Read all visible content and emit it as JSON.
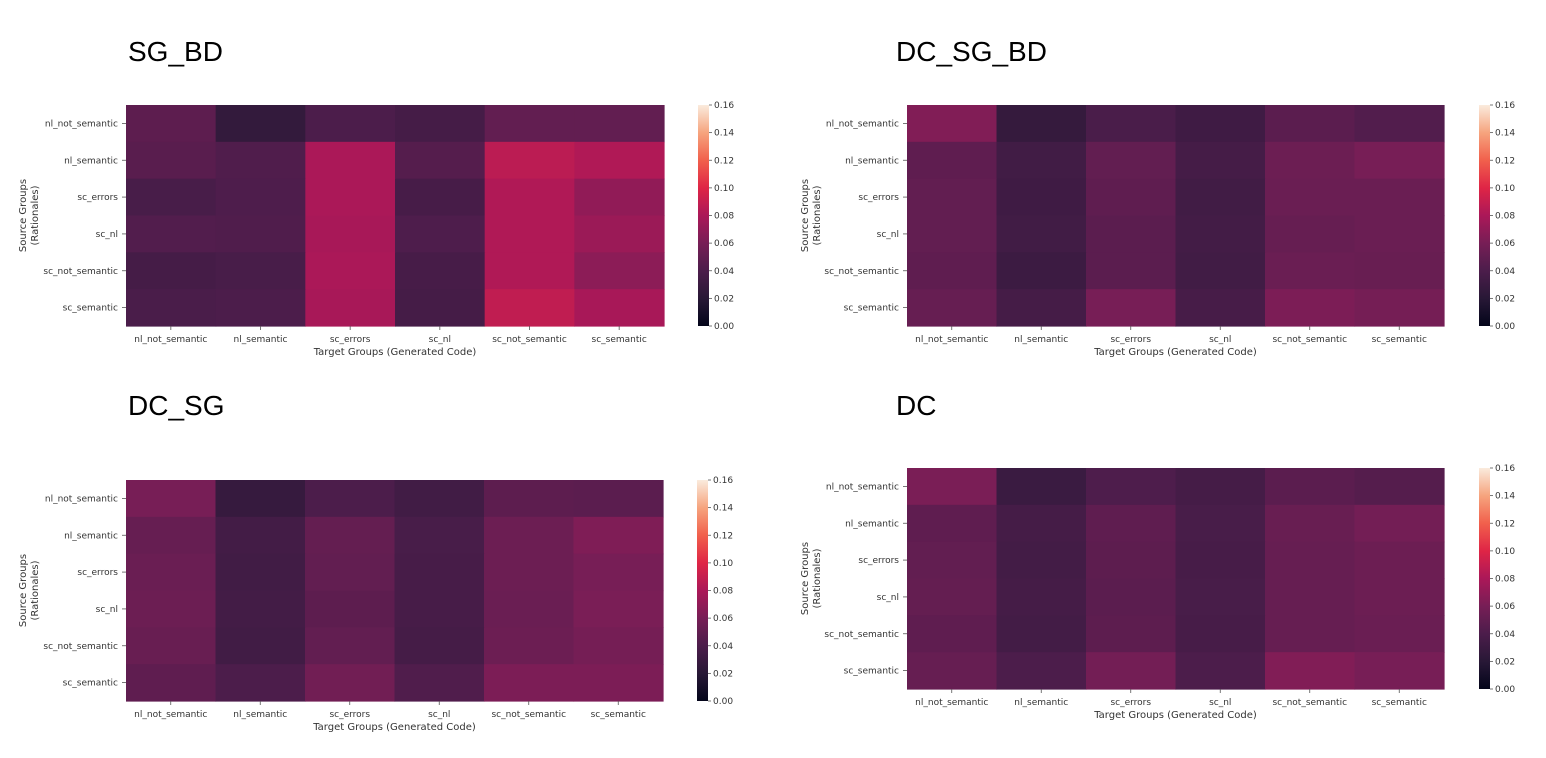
{
  "chart_data": [
    {
      "type": "heatmap",
      "title": "SG_BD",
      "xlabel": "Target Groups (Generated Code)",
      "ylabel": [
        "Source Groups",
        "(Rationales)"
      ],
      "x_categories": [
        "nl_not_semantic",
        "nl_semantic",
        "sc_errors",
        "sc_nl",
        "sc_not_semantic",
        "sc_semantic"
      ],
      "y_categories": [
        "nl_not_semantic",
        "nl_semantic",
        "sc_errors",
        "sc_nl",
        "sc_not_semantic",
        "sc_semantic"
      ],
      "values": [
        [
          0.048,
          0.026,
          0.04,
          0.036,
          0.05,
          0.05
        ],
        [
          0.046,
          0.042,
          0.08,
          0.044,
          0.086,
          0.082
        ],
        [
          0.038,
          0.041,
          0.08,
          0.037,
          0.082,
          0.07
        ],
        [
          0.043,
          0.042,
          0.079,
          0.041,
          0.082,
          0.074
        ],
        [
          0.036,
          0.038,
          0.08,
          0.037,
          0.082,
          0.068
        ],
        [
          0.039,
          0.04,
          0.079,
          0.036,
          0.088,
          0.079
        ]
      ],
      "colorbar": {
        "min": 0.0,
        "max": 0.16,
        "ticks": [
          "0.00",
          "0.02",
          "0.04",
          "0.06",
          "0.08",
          "0.10",
          "0.12",
          "0.14",
          "0.16"
        ]
      }
    },
    {
      "type": "heatmap",
      "title": "DC_SG_BD",
      "xlabel": "Target Groups (Generated Code)",
      "ylabel": [
        "Source Groups",
        "(Rationales)"
      ],
      "x_categories": [
        "nl_not_semantic",
        "nl_semantic",
        "sc_errors",
        "sc_nl",
        "sc_not_semantic",
        "sc_semantic"
      ],
      "y_categories": [
        "nl_not_semantic",
        "nl_semantic",
        "sc_errors",
        "sc_nl",
        "sc_not_semantic",
        "sc_semantic"
      ],
      "values": [
        [
          0.064,
          0.027,
          0.039,
          0.033,
          0.047,
          0.043
        ],
        [
          0.049,
          0.034,
          0.05,
          0.036,
          0.055,
          0.06
        ],
        [
          0.05,
          0.033,
          0.049,
          0.034,
          0.054,
          0.054
        ],
        [
          0.05,
          0.034,
          0.047,
          0.035,
          0.052,
          0.054
        ],
        [
          0.049,
          0.031,
          0.047,
          0.034,
          0.054,
          0.053
        ],
        [
          0.052,
          0.036,
          0.06,
          0.037,
          0.062,
          0.059
        ]
      ],
      "colorbar": {
        "min": 0.0,
        "max": 0.16,
        "ticks": [
          "0.00",
          "0.02",
          "0.04",
          "0.06",
          "0.08",
          "0.10",
          "0.12",
          "0.14",
          "0.16"
        ]
      }
    },
    {
      "type": "heatmap",
      "title": "DC_SG",
      "xlabel": "Target Groups (Generated Code)",
      "ylabel": [
        "Source Groups",
        "(Rationales)"
      ],
      "x_categories": [
        "nl_not_semantic",
        "nl_semantic",
        "sc_errors",
        "sc_nl",
        "sc_not_semantic",
        "sc_semantic"
      ],
      "y_categories": [
        "nl_not_semantic",
        "nl_semantic",
        "sc_errors",
        "sc_nl",
        "sc_not_semantic",
        "sc_semantic"
      ],
      "values": [
        [
          0.06,
          0.028,
          0.04,
          0.034,
          0.048,
          0.047
        ],
        [
          0.052,
          0.035,
          0.051,
          0.038,
          0.055,
          0.063
        ],
        [
          0.054,
          0.034,
          0.05,
          0.037,
          0.055,
          0.06
        ],
        [
          0.055,
          0.035,
          0.048,
          0.037,
          0.054,
          0.061
        ],
        [
          0.053,
          0.034,
          0.05,
          0.036,
          0.055,
          0.059
        ],
        [
          0.049,
          0.04,
          0.057,
          0.042,
          0.062,
          0.062
        ]
      ],
      "colorbar": {
        "min": 0.0,
        "max": 0.16,
        "ticks": [
          "0.00",
          "0.02",
          "0.04",
          "0.06",
          "0.08",
          "0.10",
          "0.12",
          "0.14",
          "0.16"
        ]
      }
    },
    {
      "type": "heatmap",
      "title": "DC",
      "xlabel": "Target Groups (Generated Code)",
      "ylabel": [
        "Source Groups",
        "(Rationales)"
      ],
      "x_categories": [
        "nl_not_semantic",
        "nl_semantic",
        "sc_errors",
        "sc_nl",
        "sc_not_semantic",
        "sc_semantic"
      ],
      "y_categories": [
        "nl_not_semantic",
        "nl_semantic",
        "sc_errors",
        "sc_nl",
        "sc_not_semantic",
        "sc_semantic"
      ],
      "values": [
        [
          0.061,
          0.03,
          0.041,
          0.036,
          0.047,
          0.044
        ],
        [
          0.049,
          0.036,
          0.049,
          0.038,
          0.053,
          0.058
        ],
        [
          0.05,
          0.035,
          0.048,
          0.037,
          0.052,
          0.055
        ],
        [
          0.051,
          0.036,
          0.047,
          0.038,
          0.052,
          0.055
        ],
        [
          0.049,
          0.035,
          0.048,
          0.037,
          0.052,
          0.054
        ],
        [
          0.052,
          0.04,
          0.058,
          0.04,
          0.064,
          0.06
        ]
      ],
      "colorbar": {
        "min": 0.0,
        "max": 0.16,
        "ticks": [
          "0.00",
          "0.02",
          "0.04",
          "0.06",
          "0.08",
          "0.10",
          "0.12",
          "0.14",
          "0.16"
        ]
      }
    }
  ]
}
